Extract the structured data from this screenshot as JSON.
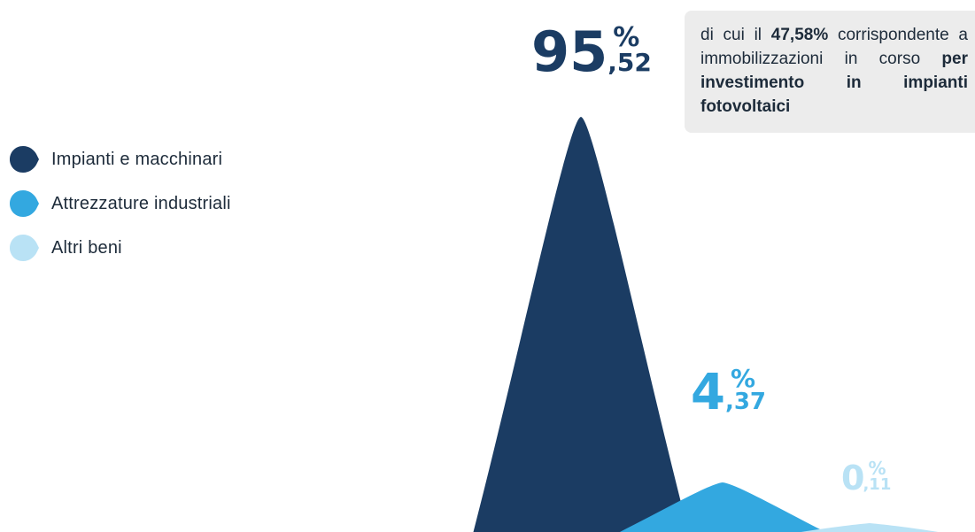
{
  "chart_data": {
    "type": "area",
    "categories": [
      "Impianti e macchinari",
      "Attrezzature industriali",
      "Altri beni"
    ],
    "series": [
      {
        "name": "Impianti e macchinari",
        "value": 95.52,
        "int_label": "95",
        "dec_label": ",52",
        "pct": "%",
        "color": "#1b3c63"
      },
      {
        "name": "Attrezzature industriali",
        "value": 4.37,
        "int_label": "4",
        "dec_label": ",37",
        "pct": "%",
        "color": "#33a8e0"
      },
      {
        "name": "Altri beni",
        "value": 0.11,
        "int_label": "0",
        "dec_label": ",11",
        "pct": "%",
        "color": "#b9e2f5"
      }
    ]
  },
  "note": {
    "p1": "di cui il ",
    "b1": "47,58%",
    "p2": " corrispondente a immobilizzazioni in corso ",
    "b2": "per investimento in impianti fotovoltaici"
  }
}
